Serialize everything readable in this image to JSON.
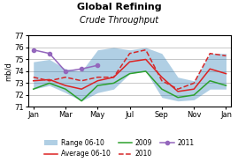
{
  "chart_data": {
    "type": "line",
    "title": "Global Refining",
    "subtitle": "Crude Throughput",
    "ylabel": "mb/d",
    "categories": [
      "Jan",
      null,
      "Mar",
      null,
      "May",
      null,
      "Jul",
      null,
      "Sep",
      null,
      "Nov",
      null,
      "Jan"
    ],
    "series": [
      {
        "name": "Range 06-10",
        "type": "range",
        "low": [
          72.5,
          72.8,
          72.2,
          71.5,
          72.2,
          72.5,
          73.8,
          74.0,
          71.8,
          71.5,
          71.6,
          72.5,
          72.5
        ],
        "high": [
          74.8,
          75.0,
          74.2,
          74.0,
          75.8,
          76.0,
          75.8,
          76.0,
          75.5,
          73.5,
          73.2,
          75.5,
          75.5
        ]
      },
      {
        "name": "Average 06-10",
        "color": "#dd2222",
        "values": [
          73.2,
          73.3,
          72.8,
          72.5,
          73.2,
          73.5,
          74.8,
          75.0,
          73.5,
          72.3,
          72.5,
          74.2,
          73.8
        ]
      },
      {
        "name": "2009",
        "values": [
          72.5,
          73.0,
          72.5,
          71.5,
          72.8,
          73.0,
          73.8,
          74.0,
          72.5,
          71.8,
          72.0,
          73.2,
          72.8
        ]
      },
      {
        "name": "2010",
        "line_style": "dashed",
        "values": [
          73.5,
          73.2,
          73.5,
          73.2,
          73.5,
          73.5,
          75.5,
          75.8,
          73.2,
          72.5,
          73.0,
          75.5,
          75.3
        ]
      },
      {
        "name": "2011",
        "marker": "circle",
        "values": [
          75.8,
          75.5,
          74.0,
          74.2,
          74.5,
          null,
          null,
          null,
          null,
          null,
          null,
          null,
          null
        ]
      }
    ],
    "ylim": [
      71,
      77
    ],
    "yticks": [
      71,
      72,
      73,
      74,
      75,
      76,
      77
    ],
    "grid": true,
    "legend": "lower center"
  }
}
